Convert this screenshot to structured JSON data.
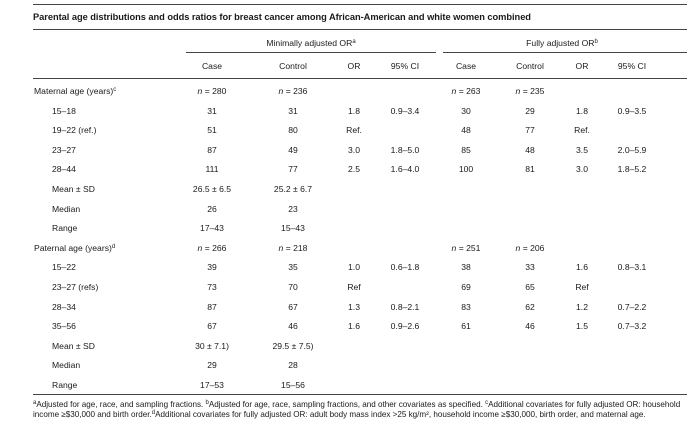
{
  "title": "Parental age distributions and odds ratios for breast cancer among African-American and white women combined",
  "groups": {
    "min": {
      "label": "Minimally adjusted OR",
      "mark": "a"
    },
    "full": {
      "label": "Fully adjusted OR",
      "mark": "b"
    }
  },
  "col_headers": [
    "Case",
    "Control",
    "OR",
    "95% CI",
    "Case",
    "Control",
    "OR",
    "95% CI"
  ],
  "rows": [
    {
      "label": "Maternal age (years)",
      "mark": "c",
      "top": true,
      "cells": [
        "n = 280",
        "n = 236",
        "",
        "",
        "n = 263",
        "n = 235",
        "",
        ""
      ]
    },
    {
      "label": "15–18",
      "cells": [
        "31",
        "31",
        "1.8",
        "0.9–3.4",
        "30",
        "29",
        "1.8",
        "0.9–3.5"
      ]
    },
    {
      "label": "19–22 (ref.)",
      "cells": [
        "51",
        "80",
        "Ref.",
        "",
        "48",
        "77",
        "Ref.",
        ""
      ]
    },
    {
      "label": "23–27",
      "cells": [
        "87",
        "49",
        "3.0",
        "1.8–5.0",
        "85",
        "48",
        "3.5",
        "2.0–5.9"
      ]
    },
    {
      "label": "28–44",
      "cells": [
        "111",
        "77",
        "2.5",
        "1.6–4.0",
        "100",
        "81",
        "3.0",
        "1.8–5.2"
      ]
    },
    {
      "label": "Mean ± SD",
      "cells": [
        "26.5 ± 6.5",
        "25.2 ± 6.7",
        "",
        "",
        "",
        "",
        "",
        ""
      ]
    },
    {
      "label": "Median",
      "cells": [
        "26",
        "23",
        "",
        "",
        "",
        "",
        "",
        ""
      ]
    },
    {
      "label": "Range",
      "cells": [
        "17–43",
        "15–43",
        "",
        "",
        "",
        "",
        "",
        ""
      ]
    },
    {
      "label": "Paternal age (years)",
      "mark": "d",
      "top": true,
      "cells": [
        "n = 266",
        "n = 218",
        "",
        "",
        "n = 251",
        "n = 206",
        "",
        ""
      ]
    },
    {
      "label": "15–22",
      "cells": [
        "39",
        "35",
        "1.0",
        "0.6–1.8",
        "38",
        "33",
        "1.6",
        "0.8–3.1"
      ]
    },
    {
      "label": "23–27 (refs)",
      "cells": [
        "73",
        "70",
        "Ref",
        "",
        "69",
        "65",
        "Ref",
        ""
      ]
    },
    {
      "label": "28–34",
      "cells": [
        "87",
        "67",
        "1.3",
        "0.8–2.1",
        "83",
        "62",
        "1.2",
        "0.7–2.2"
      ]
    },
    {
      "label": "35–56",
      "cells": [
        "67",
        "46",
        "1.6",
        "0.9–2.6",
        "61",
        "46",
        "1.5",
        "0.7–3.2"
      ]
    },
    {
      "label": "Mean ± SD",
      "cells": [
        "30 ± 7.1)",
        "29.5 ± 7.5)",
        "",
        "",
        "",
        "",
        "",
        ""
      ]
    },
    {
      "label": "Median",
      "cells": [
        "29",
        "28",
        "",
        "",
        "",
        "",
        "",
        ""
      ]
    },
    {
      "label": "Range",
      "cells": [
        "17–53",
        "15–56",
        "",
        "",
        "",
        "",
        "",
        ""
      ]
    }
  ],
  "footnotes": [
    {
      "mark": "a",
      "text": "Adjusted for age, race, and sampling fractions. "
    },
    {
      "mark": "b",
      "text": "Adjusted for age, race, sampling fractions, and other covariates as specified. "
    },
    {
      "mark": "c",
      "text": "Additional covariates for fully adjusted OR: household income ≥$30,000 and birth order."
    },
    {
      "mark": "d",
      "text": "Additional covariates for fully adjusted OR: adult body mass index >25 kg/m², household income ≥$30,000, birth order, and maternal age."
    }
  ]
}
